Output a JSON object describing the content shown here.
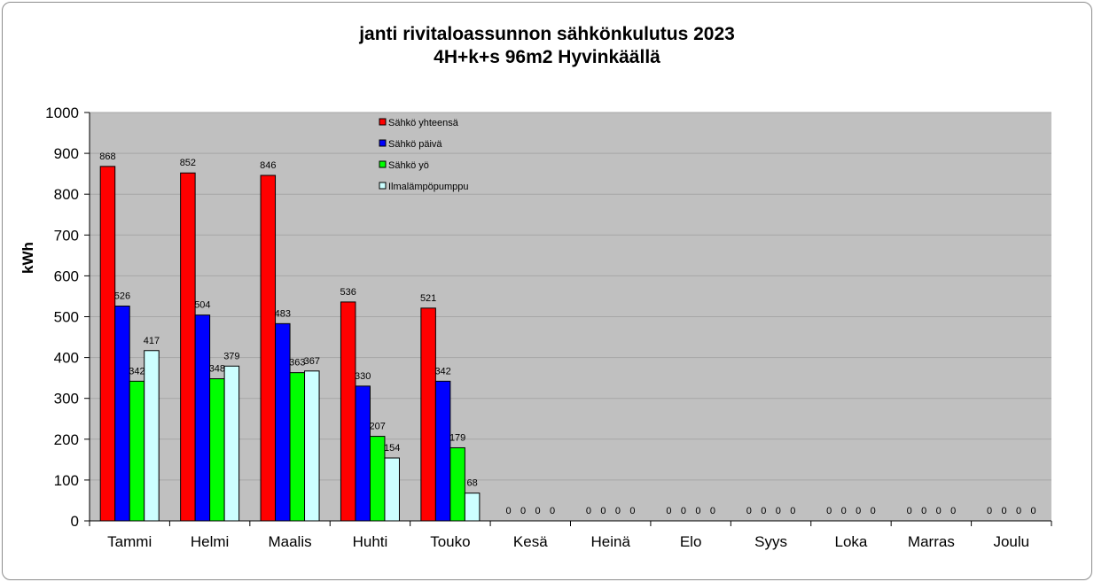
{
  "chart_data": {
    "type": "bar",
    "title": "janti rivitaloassunnon sähkönkulutus 2023",
    "subtitle": "4H+k+s 96m2 Hyvinkäällä",
    "ylabel": "kWh",
    "xlabel": "",
    "ylim": [
      0,
      1000
    ],
    "yticks": [
      0,
      100,
      200,
      300,
      400,
      500,
      600,
      700,
      800,
      900,
      1000
    ],
    "grid": true,
    "legend_position": "top-center",
    "categories": [
      "Tammi",
      "Helmi",
      "Maalis",
      "Huhti",
      "Touko",
      "Kesä",
      "Heinä",
      "Elo",
      "Syys",
      "Loka",
      "Marras",
      "Joulu"
    ],
    "series": [
      {
        "name": "Sähkö yhteensä",
        "color": "#ff0000",
        "values": [
          868,
          852,
          846,
          536,
          521,
          0,
          0,
          0,
          0,
          0,
          0,
          0
        ]
      },
      {
        "name": "Sähkö päivä",
        "color": "#0000ff",
        "values": [
          526,
          504,
          483,
          330,
          342,
          0,
          0,
          0,
          0,
          0,
          0,
          0
        ]
      },
      {
        "name": "Sähkö yö",
        "color": "#00ff00",
        "values": [
          342,
          348,
          363,
          207,
          179,
          0,
          0,
          0,
          0,
          0,
          0,
          0
        ]
      },
      {
        "name": "Ilmalämpöpumppu",
        "color": "#ccffff",
        "values": [
          417,
          379,
          367,
          154,
          68,
          0,
          0,
          0,
          0,
          0,
          0,
          0
        ]
      }
    ],
    "plot_background": "#c0c0c0",
    "gridline_color": "#a6a6a6"
  }
}
